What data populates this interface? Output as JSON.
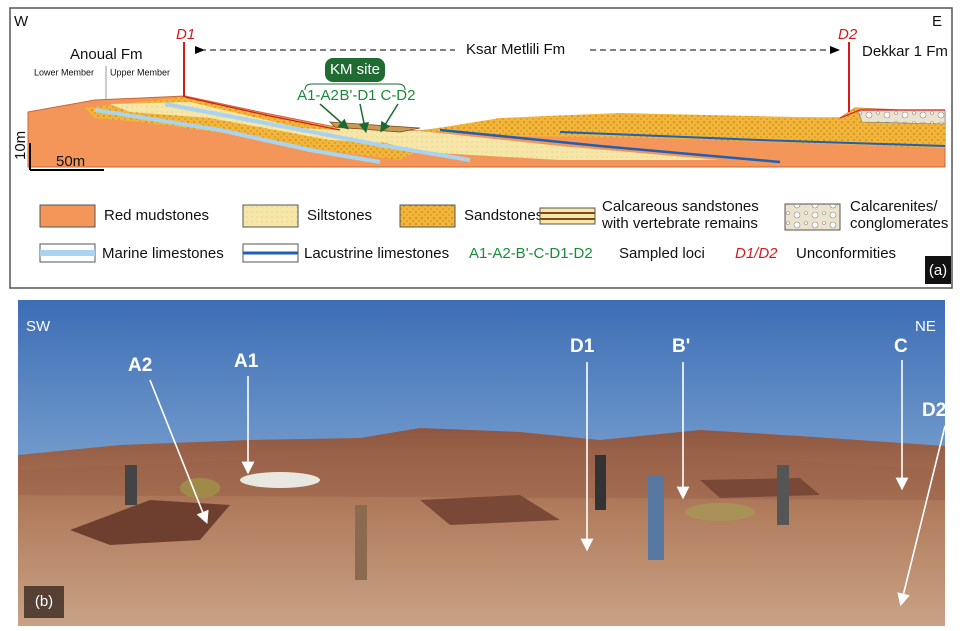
{
  "panel_a": {
    "west": "W",
    "east": "E",
    "unconformity_labels": [
      "D1",
      "D2"
    ],
    "formations": [
      "Anoual Fm",
      "Ksar Metlili Fm",
      "Dekkar 1 Fm"
    ],
    "members": [
      "Lower Member",
      "Upper Member"
    ],
    "site": {
      "name": "KM site",
      "loci": [
        "A1-A2",
        "B'-D1",
        "C-D2"
      ]
    },
    "scale": {
      "vertical": "10m",
      "horizontal": "50m"
    },
    "legend": [
      {
        "lines": [
          "Red mudstones"
        ]
      },
      {
        "lines": [
          "Siltstones"
        ]
      },
      {
        "lines": [
          "Sandstones"
        ]
      },
      {
        "lines": [
          "Calcareous sandstones",
          "with vertebrate remains"
        ]
      },
      {
        "lines": [
          "Calcarenites/",
          "conglomerates"
        ]
      },
      {
        "lines": [
          "Marine limestones"
        ]
      },
      {
        "lines": [
          "Lacustrine limestones"
        ]
      },
      {
        "lines": [
          "A1-A2-B'-C-D1-D2",
          "Sampled loci"
        ]
      },
      {
        "lines": [
          "D1/D2",
          "Unconformities"
        ]
      }
    ],
    "panel_label": "(a)"
  },
  "panel_b": {
    "west": "SW",
    "east": "NE",
    "loci": [
      "A2",
      "A1",
      "D1",
      "B'",
      "C",
      "D2"
    ],
    "panel_label": "(b)"
  }
}
